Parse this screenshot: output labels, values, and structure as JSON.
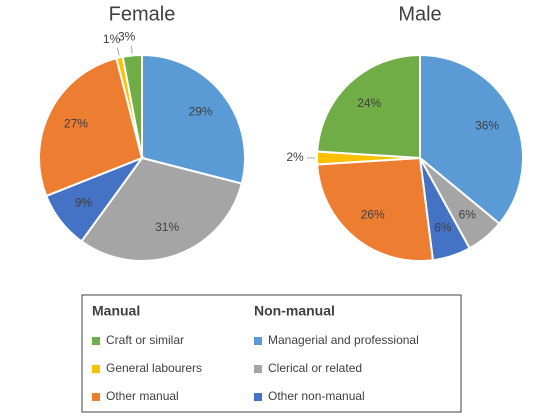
{
  "chart_data": [
    {
      "type": "pie",
      "title": "Female",
      "categories": [
        "Managerial and professional",
        "Clerical or related",
        "Other non-manual",
        "Other manual",
        "General labourers",
        "Craft or similar"
      ],
      "values": [
        29,
        31,
        9,
        27,
        1,
        3
      ],
      "value_labels": [
        "29%",
        "31%",
        "9%",
        "27%",
        "1%",
        "3%"
      ],
      "colors": [
        "#5b9bd5",
        "#a5a5a5",
        "#4472c4",
        "#ed7d31",
        "#ffc000",
        "#70ad47"
      ]
    },
    {
      "type": "pie",
      "title": "Male",
      "categories": [
        "Managerial and professional",
        "Clerical or related",
        "Other non-manual",
        "Other manual",
        "General labourers",
        "Craft or similar"
      ],
      "values": [
        36,
        6,
        6,
        26,
        2,
        24
      ],
      "value_labels": [
        "36%",
        "6%",
        "6%",
        "26%",
        "2%",
        "24%"
      ],
      "colors": [
        "#5b9bd5",
        "#a5a5a5",
        "#4472c4",
        "#ed7d31",
        "#ffc000",
        "#70ad47"
      ]
    }
  ],
  "legend": {
    "groups": [
      {
        "title": "Manual",
        "items": [
          "Craft or similar",
          "General labourers",
          "Other manual"
        ]
      },
      {
        "title": "Non-manual",
        "items": [
          "Managerial and professional",
          "Clerical or related",
          "Other non-manual"
        ]
      }
    ]
  }
}
